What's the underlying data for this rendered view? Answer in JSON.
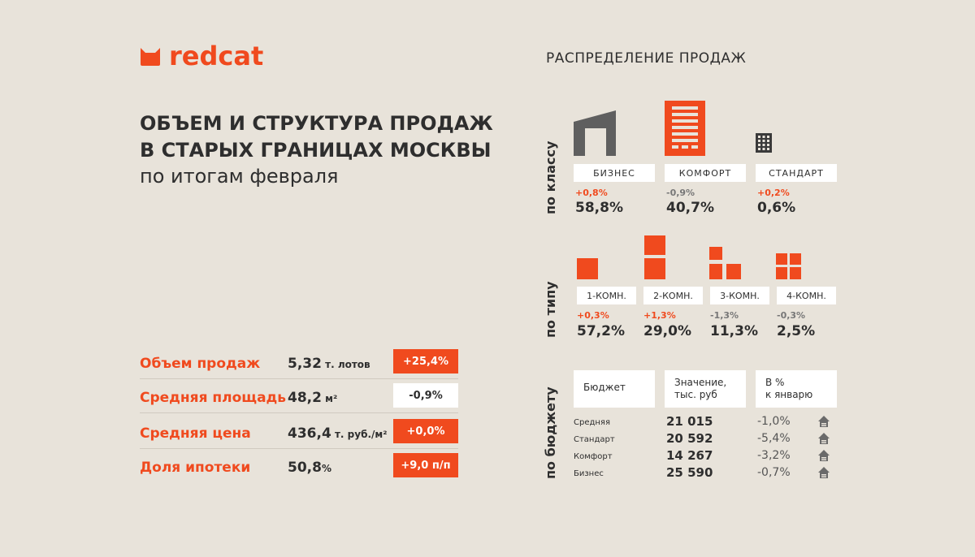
{
  "brand": {
    "name": "redcat",
    "color": "#f04a1e",
    "logo_icon": "cat-ears-icon"
  },
  "header": {
    "title_line1": "ОБЪЕМ И СТРУКТУРА ПРОДАЖ",
    "title_line2": "В СТАРЫХ ГРАНИЦАХ МОСКВЫ",
    "subtitle": "по итогам февраля"
  },
  "metrics": [
    {
      "label": "Объем продаж",
      "value": "5,32",
      "unit": " т. лотов",
      "delta": "+25,4%",
      "delta_style": "red"
    },
    {
      "label": "Средняя площадь",
      "value": "48,2",
      "unit": " м²",
      "delta": "-0,9%",
      "delta_style": "white"
    },
    {
      "label": "Средняя цена",
      "value": "436,4",
      "unit": " т. руб./м²",
      "delta": "+0,0%",
      "delta_style": "red"
    },
    {
      "label": "Доля ипотеки",
      "value": "50,8",
      "unit": "%",
      "delta": "+9,0 п/п",
      "delta_style": "red"
    }
  ],
  "distribution": {
    "title": "РАСПРЕДЕЛЕНИЕ ПРОДАЖ",
    "by_class": {
      "label": "по классу",
      "items": [
        {
          "name": "БИЗНЕС",
          "change": "+0,8%",
          "change_color": "red",
          "share": "58,8%",
          "icon": "business-building-icon"
        },
        {
          "name": "КОМФОРТ",
          "change": "-0,9%",
          "change_color": "gray",
          "share": "40,7%",
          "icon": "comfort-building-icon"
        },
        {
          "name": "СТАНДАРТ",
          "change": "+0,2%",
          "change_color": "red",
          "share": "0,6%",
          "icon": "standard-building-icon"
        }
      ]
    },
    "by_type": {
      "label": "по типу",
      "items": [
        {
          "name": "1-КОМН.",
          "change": "+0,3%",
          "change_color": "red",
          "share": "57,2%",
          "icon": "one-room-icon"
        },
        {
          "name": "2-КОМН.",
          "change": "+1,3%",
          "change_color": "red",
          "share": "29,0%",
          "icon": "two-room-icon"
        },
        {
          "name": "3-КОМН.",
          "change": "-1,3%",
          "change_color": "gray",
          "share": "11,3%",
          "icon": "three-room-icon"
        },
        {
          "name": "4-КОМН.",
          "change": "-0,3%",
          "change_color": "gray",
          "share": "2,5%",
          "icon": "four-room-icon"
        }
      ]
    },
    "by_budget": {
      "label": "по бюджету",
      "headers": {
        "col1": "Бюджет",
        "col2_l1": "Значение,",
        "col2_l2": "тыс. руб",
        "col3_l1": "В %",
        "col3_l2": "к январю"
      },
      "rows": [
        {
          "name": "Средняя",
          "value": "21 015",
          "change": "-1,0%"
        },
        {
          "name": "Стандарт",
          "value": "20 592",
          "change": "-5,4%"
        },
        {
          "name": "Комфорт",
          "value": "14 267",
          "change": "-3,2%"
        },
        {
          "name": "Бизнес",
          "value": "25 590",
          "change": "-0,7%"
        }
      ]
    }
  },
  "colors": {
    "accent": "#f04a1e",
    "text": "#2e2e2e",
    "background": "#e8e3da",
    "muted": "#777777",
    "icon_gray": "#5f5f5f"
  }
}
